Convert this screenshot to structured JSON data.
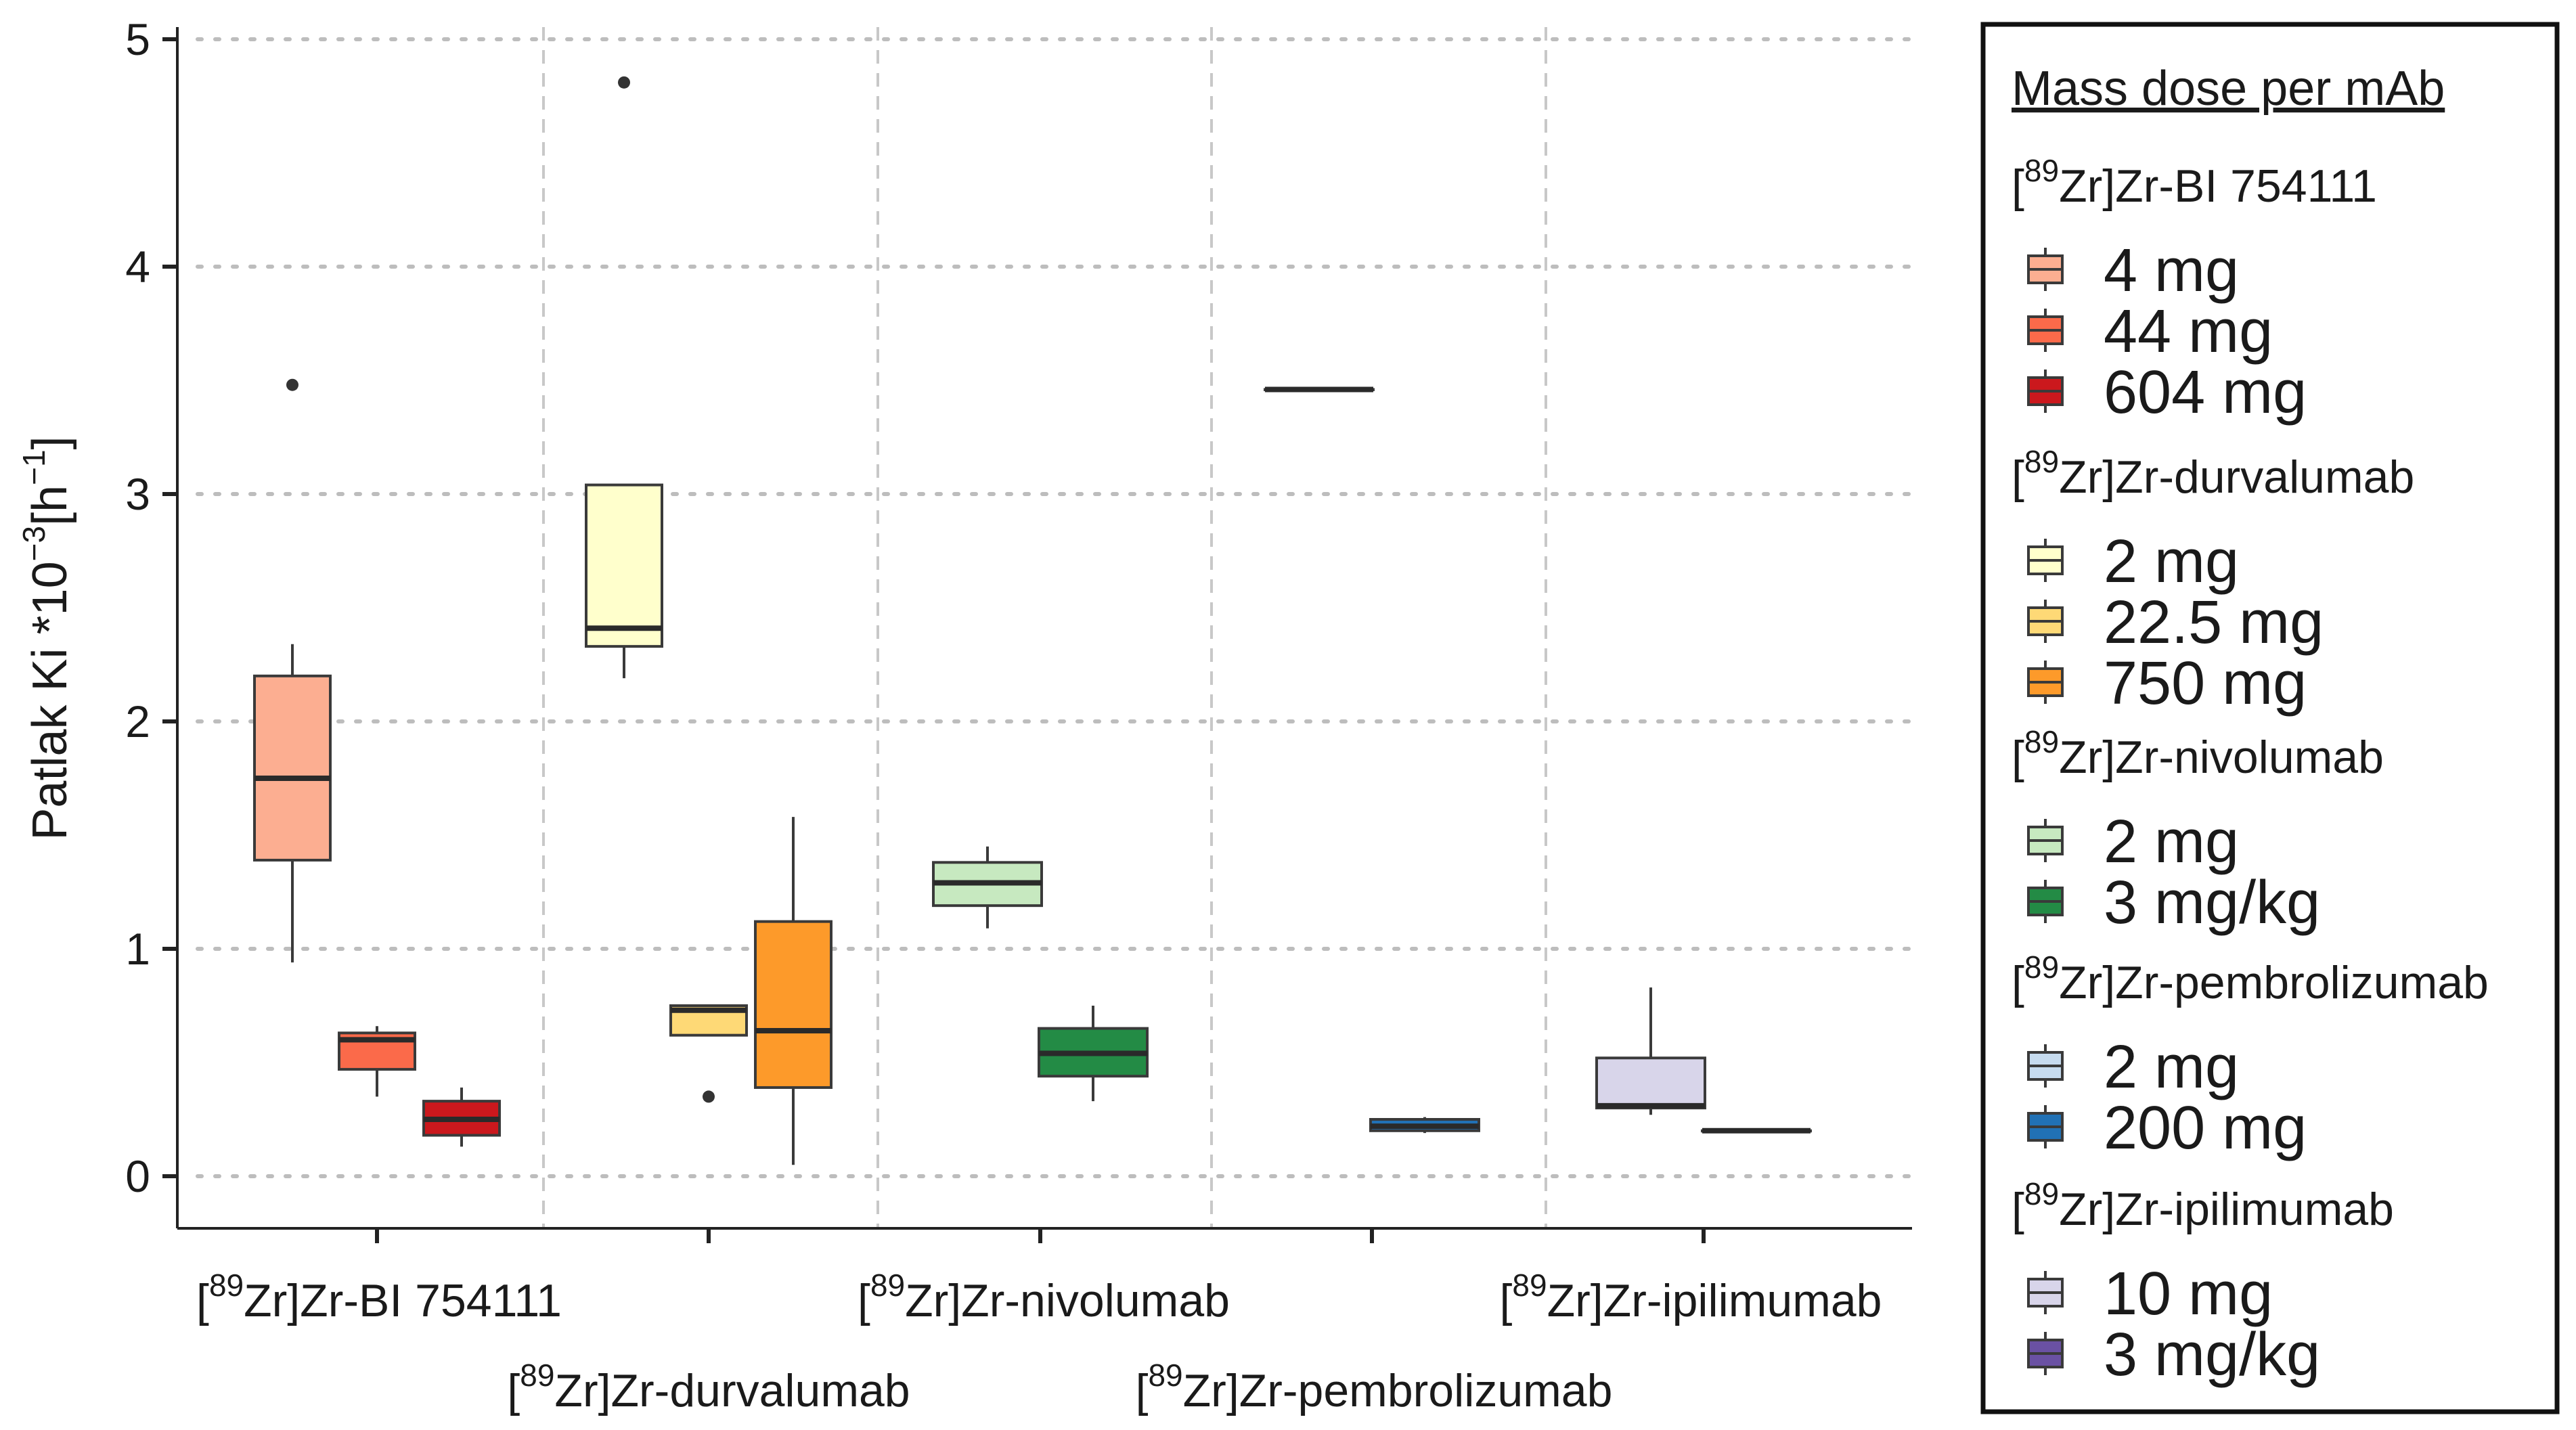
{
  "chart_data": {
    "type": "boxplot",
    "ylabel": {
      "text_main": "Patlak Ki *10",
      "exp1": "−3",
      "text_mid": "[h",
      "exp2": "−1",
      "text_end": "]"
    },
    "ylim": [
      -0.2,
      5.05
    ],
    "yticks": [
      0,
      1,
      2,
      3,
      4,
      5
    ],
    "tick_labels": [
      "0",
      "1",
      "2",
      "3",
      "4",
      "5"
    ],
    "grid": true,
    "legend_position": "right",
    "legend_title": "Mass dose per mAb",
    "categories": [
      {
        "name": "BI 754111",
        "sup": "89",
        "prefix": "[",
        "rest": "Zr]Zr-BI 754111"
      },
      {
        "name": "durvalumab",
        "sup": "89",
        "prefix": "[",
        "rest": "Zr]Zr-durvalumab"
      },
      {
        "name": "nivolumab",
        "sup": "89",
        "prefix": "[",
        "rest": "Zr]Zr-nivolumab"
      },
      {
        "name": "pembrolizumab",
        "sup": "89",
        "prefix": "[",
        "rest": "Zr]Zr-pembrolizumab"
      },
      {
        "name": "ipilimumab",
        "sup": "89",
        "prefix": "[",
        "rest": "Zr]Zr-ipilimumab"
      }
    ],
    "series": [
      {
        "category": 0,
        "dose": "4 mg",
        "color": "#fcae91",
        "min": 0.94,
        "q1": 1.39,
        "median": 1.75,
        "q3": 2.2,
        "max": 2.34,
        "outliers": [
          3.48
        ]
      },
      {
        "category": 0,
        "dose": "44 mg",
        "color": "#fb6a4a",
        "min": 0.35,
        "q1": 0.47,
        "median": 0.6,
        "q3": 0.63,
        "max": 0.66,
        "outliers": []
      },
      {
        "category": 0,
        "dose": "604 mg",
        "color": "#cb181d",
        "min": 0.13,
        "q1": 0.18,
        "median": 0.25,
        "q3": 0.33,
        "max": 0.39,
        "outliers": []
      },
      {
        "category": 1,
        "dose": "2 mg",
        "color": "#ffffcc",
        "min": 2.19,
        "q1": 2.33,
        "median": 2.41,
        "q3": 3.04,
        "max": 3.04,
        "outliers": [
          4.81
        ]
      },
      {
        "category": 1,
        "dose": "22.5 mg",
        "color": "#fed976",
        "min": 0.62,
        "q1": 0.62,
        "median": 0.73,
        "q3": 0.75,
        "max": 0.75,
        "outliers": [
          0.35
        ]
      },
      {
        "category": 1,
        "dose": "750 mg",
        "color": "#fd9a2a",
        "min": 0.05,
        "q1": 0.39,
        "median": 0.64,
        "q3": 1.12,
        "max": 1.58,
        "outliers": []
      },
      {
        "category": 2,
        "dose": "2 mg",
        "color": "#c7e9c0",
        "min": 1.09,
        "q1": 1.19,
        "median": 1.29,
        "q3": 1.38,
        "max": 1.45,
        "outliers": []
      },
      {
        "category": 2,
        "dose": "3 mg/kg",
        "color": "#238b45",
        "min": 0.33,
        "q1": 0.44,
        "median": 0.54,
        "q3": 0.65,
        "max": 0.75,
        "outliers": []
      },
      {
        "category": 3,
        "dose": "2 mg",
        "color": "#c6dbef",
        "min": 3.46,
        "q1": 3.46,
        "median": 3.46,
        "q3": 3.46,
        "max": 3.46,
        "outliers": []
      },
      {
        "category": 3,
        "dose": "200 mg",
        "color": "#2171b5",
        "min": 0.19,
        "q1": 0.2,
        "median": 0.22,
        "q3": 0.25,
        "max": 0.26,
        "outliers": []
      },
      {
        "category": 4,
        "dose": "10 mg",
        "color": "#d8d5ea",
        "min": 0.27,
        "q1": 0.3,
        "median": 0.31,
        "q3": 0.52,
        "max": 0.83,
        "outliers": []
      },
      {
        "category": 4,
        "dose": "3 mg/kg",
        "color": "#6a51a3",
        "min": 0.2,
        "q1": 0.2,
        "median": 0.2,
        "q3": 0.2,
        "max": 0.2,
        "outliers": []
      }
    ],
    "legend_groups": [
      {
        "sup": "89",
        "prefix": "[",
        "rest": "Zr]Zr-BI 754111",
        "items": [
          {
            "label": "4 mg",
            "color": "#fcae91"
          },
          {
            "label": "44 mg",
            "color": "#fb6a4a"
          },
          {
            "label": "604 mg",
            "color": "#cb181d"
          }
        ]
      },
      {
        "sup": "89",
        "prefix": "[",
        "rest": "Zr]Zr-durvalumab",
        "items": [
          {
            "label": "2 mg",
            "color": "#ffffcc"
          },
          {
            "label": "22.5 mg",
            "color": "#fed976"
          },
          {
            "label": "750 mg",
            "color": "#fd9a2a"
          }
        ]
      },
      {
        "sup": "89",
        "prefix": "[",
        "rest": "Zr]Zr-nivolumab",
        "items": [
          {
            "label": "2 mg",
            "color": "#c7e9c0"
          },
          {
            "label": "3 mg/kg",
            "color": "#238b45"
          }
        ]
      },
      {
        "sup": "89",
        "prefix": "[",
        "rest": "Zr]Zr-pembrolizumab",
        "items": [
          {
            "label": "2 mg",
            "color": "#c6dbef"
          },
          {
            "label": "200 mg",
            "color": "#2171b5"
          }
        ]
      },
      {
        "sup": "89",
        "prefix": "[",
        "rest": "Zr]Zr-ipilimumab",
        "items": [
          {
            "label": "10 mg",
            "color": "#d8d5ea"
          },
          {
            "label": "3 mg/kg",
            "color": "#6a51a3"
          }
        ]
      }
    ]
  }
}
